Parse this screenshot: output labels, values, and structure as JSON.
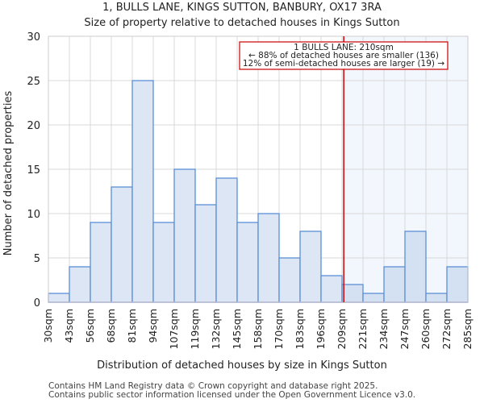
{
  "chart_data": {
    "type": "bar",
    "title": "1, BULLS LANE, KINGS SUTTON, BANBURY, OX17 3RA",
    "subtitle": "Size of property relative to detached houses in Kings Sutton",
    "xlabel": "Distribution of detached houses by size in Kings Sutton",
    "ylabel": "Number of detached properties",
    "bin_edges": [
      30,
      43,
      56,
      68,
      81,
      94,
      107,
      119,
      132,
      145,
      158,
      170,
      183,
      196,
      209,
      221,
      234,
      247,
      260,
      272,
      285
    ],
    "tick_labels": [
      "30sqm",
      "43sqm",
      "56sqm",
      "68sqm",
      "81sqm",
      "94sqm",
      "107sqm",
      "119sqm",
      "132sqm",
      "145sqm",
      "158sqm",
      "170sqm",
      "183sqm",
      "196sqm",
      "209sqm",
      "221sqm",
      "234sqm",
      "247sqm",
      "260sqm",
      "272sqm",
      "285sqm"
    ],
    "values": [
      1,
      4,
      9,
      13,
      25,
      9,
      15,
      11,
      14,
      9,
      10,
      5,
      8,
      3,
      2,
      1,
      4,
      8,
      1,
      4
    ],
    "ylim": [
      0,
      30
    ],
    "yticks": [
      0,
      5,
      10,
      15,
      20,
      25,
      30
    ],
    "grid": true,
    "marker": {
      "value": 210,
      "color": "#cc0000"
    },
    "annotation": {
      "line1": "1 BULLS LANE: 210sqm",
      "line2": "← 88% of detached houses are smaller (136)",
      "line3": "12% of semi-detached houses are larger (19) →"
    },
    "colors": {
      "bar_fill": "#dce6f5",
      "bar_fill_highlight": "#d4e1f3",
      "bar_edge": "#5b8fd6",
      "highlight_bg": "#f2f6fd"
    }
  },
  "footer": {
    "line1": "Contains HM Land Registry data © Crown copyright and database right 2025.",
    "line2": "Contains public sector information licensed under the Open Government Licence v3.0."
  }
}
